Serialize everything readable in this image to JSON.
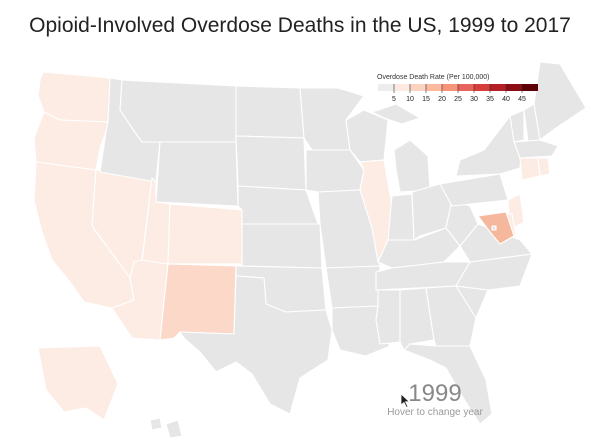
{
  "title": "Opioid-Involved Overdose Deaths in the US, 1999 to 2017",
  "legend": {
    "title": "Overdose Death Rate (Per 100,000)",
    "ticks": [
      "5",
      "10",
      "15",
      "20",
      "25",
      "30",
      "35",
      "40",
      "45"
    ],
    "colors": [
      "#ededed",
      "#fde9df",
      "#fcd3c0",
      "#fbb99e",
      "#f6957a",
      "#e8645a",
      "#d73e3b",
      "#b51f27",
      "#8c0d14",
      "#5e0008"
    ]
  },
  "year": "1999",
  "hint": "Hover to change year",
  "colors": {
    "none": "#e6e6e6",
    "light": "#fdece4",
    "medium": "#fbd8c8",
    "dark": "#f6b89c"
  },
  "states": {
    "WA": "light",
    "OR": "light",
    "CA": "light",
    "NV": "light",
    "UT": "light",
    "AZ": "light",
    "CO": "light",
    "NM": "medium",
    "IL": "light",
    "CT": "light",
    "RI": "light",
    "MD": "dark",
    "DE": "light",
    "NJ": "light",
    "AK": "light"
  }
}
